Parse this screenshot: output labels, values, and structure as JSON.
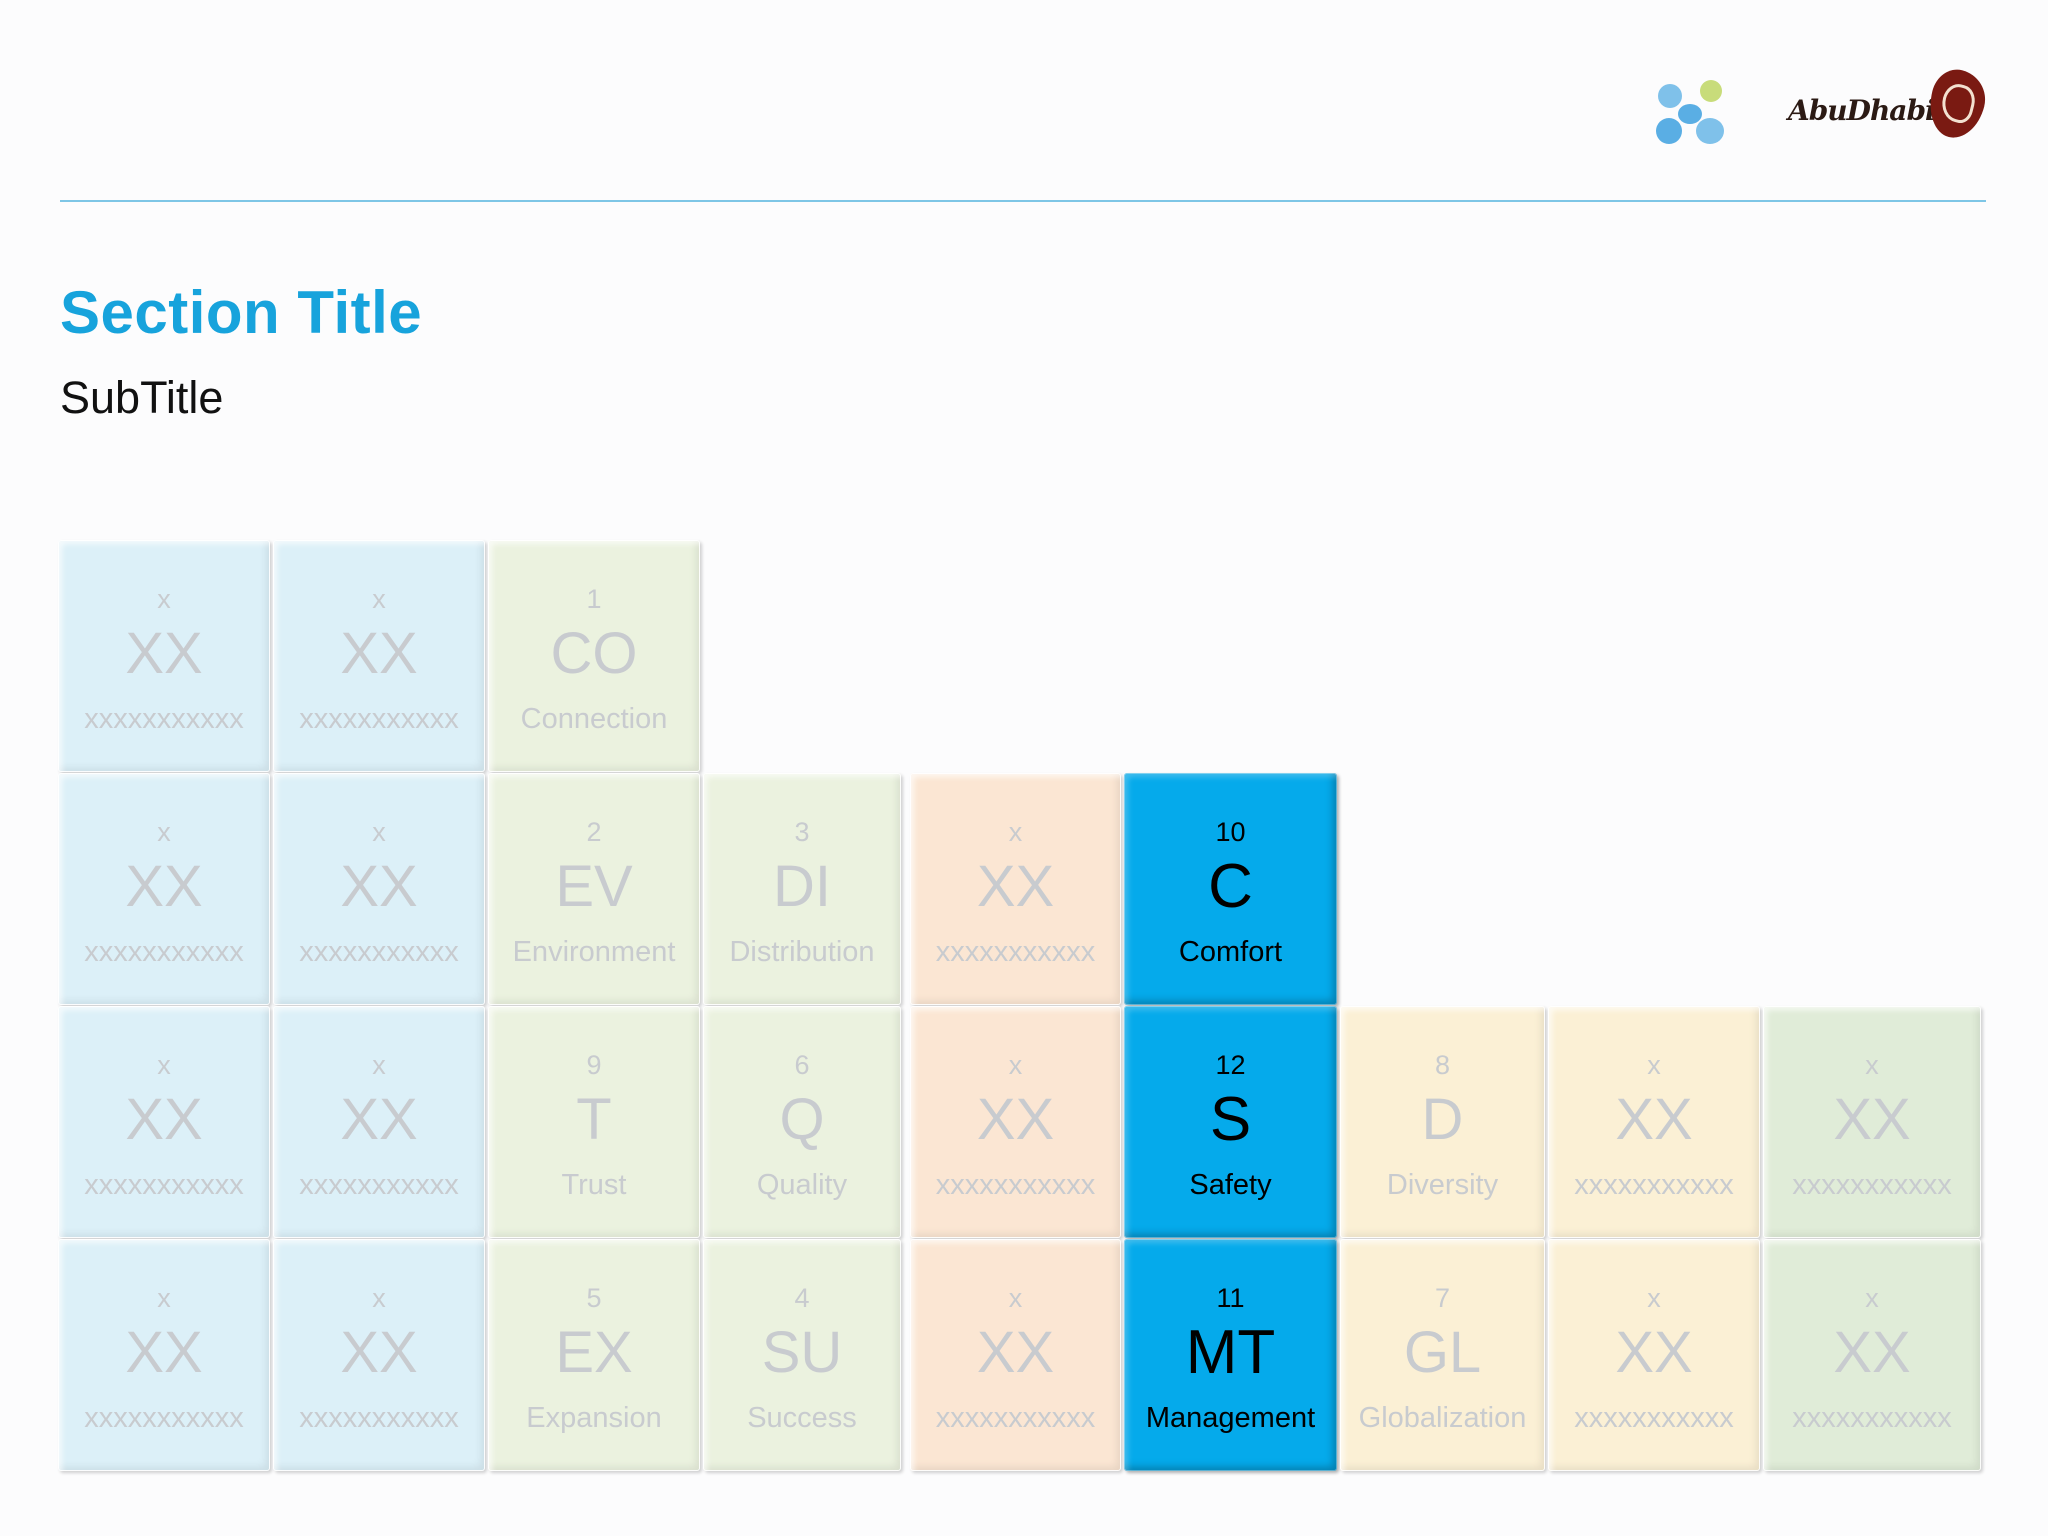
{
  "header": {
    "title": "Section Title",
    "subtitle": "SubTitle",
    "logos": [
      "dots-logo",
      "abu-dhabi-logo"
    ],
    "logo_wordmark": "AbuDhabi"
  },
  "colors": {
    "accent": "#17a3dc",
    "rule": "#7ec6e6",
    "active_tile": "#05aaeb",
    "blue_tile": "#dcf0f8",
    "green_tile": "#ebf2df",
    "peach_tile": "#fbe6d3",
    "cream_tile": "#fbf0d5",
    "sage_tile": "#e0ecd8"
  },
  "tiles": [
    {
      "num": "x",
      "sym": "XX",
      "name": "xxxxxxxxxxx",
      "color": "blue_tile"
    },
    {
      "num": "x",
      "sym": "XX",
      "name": "xxxxxxxxxxx",
      "color": "blue_tile"
    },
    {
      "num": "1",
      "sym": "CO",
      "name": "Connection",
      "color": "green_tile"
    },
    {
      "num": "x",
      "sym": "XX",
      "name": "xxxxxxxxxxx",
      "color": "blue_tile"
    },
    {
      "num": "x",
      "sym": "XX",
      "name": "xxxxxxxxxxx",
      "color": "blue_tile"
    },
    {
      "num": "2",
      "sym": "EV",
      "name": "Environment",
      "color": "green_tile"
    },
    {
      "num": "3",
      "sym": "DI",
      "name": "Distribution",
      "color": "green_tile"
    },
    {
      "num": "x",
      "sym": "XX",
      "name": "xxxxxxxxxxx",
      "color": "peach_tile"
    },
    {
      "num": "10",
      "sym": "C",
      "name": "Comfort",
      "color": "active_tile",
      "active": true
    },
    {
      "num": "x",
      "sym": "XX",
      "name": "xxxxxxxxxxx",
      "color": "blue_tile"
    },
    {
      "num": "x",
      "sym": "XX",
      "name": "xxxxxxxxxxx",
      "color": "blue_tile"
    },
    {
      "num": "9",
      "sym": "T",
      "name": "Trust",
      "color": "green_tile"
    },
    {
      "num": "6",
      "sym": "Q",
      "name": "Quality",
      "color": "green_tile"
    },
    {
      "num": "x",
      "sym": "XX",
      "name": "xxxxxxxxxxx",
      "color": "peach_tile"
    },
    {
      "num": "12",
      "sym": "S",
      "name": "Safety",
      "color": "active_tile",
      "active": true
    },
    {
      "num": "8",
      "sym": "D",
      "name": "Diversity",
      "color": "cream_tile"
    },
    {
      "num": "x",
      "sym": "XX",
      "name": "xxxxxxxxxxx",
      "color": "cream_tile"
    },
    {
      "num": "x",
      "sym": "XX",
      "name": "xxxxxxxxxxx",
      "color": "sage_tile"
    },
    {
      "num": "x",
      "sym": "XX",
      "name": "xxxxxxxxxxx",
      "color": "blue_tile"
    },
    {
      "num": "x",
      "sym": "XX",
      "name": "xxxxxxxxxxx",
      "color": "blue_tile"
    },
    {
      "num": "5",
      "sym": "EX",
      "name": "Expansion",
      "color": "green_tile"
    },
    {
      "num": "4",
      "sym": "SU",
      "name": "Success",
      "color": "green_tile"
    },
    {
      "num": "x",
      "sym": "XX",
      "name": "xxxxxxxxxxx",
      "color": "peach_tile"
    },
    {
      "num": "11",
      "sym": "MT",
      "name": "Management",
      "color": "active_tile",
      "active": true
    },
    {
      "num": "7",
      "sym": "GL",
      "name": "Globalization",
      "color": "cream_tile"
    },
    {
      "num": "x",
      "sym": "XX",
      "name": "xxxxxxxxxxx",
      "color": "cream_tile"
    },
    {
      "num": "x",
      "sym": "XX",
      "name": "xxxxxxxxxxx",
      "color": "sage_tile"
    }
  ]
}
